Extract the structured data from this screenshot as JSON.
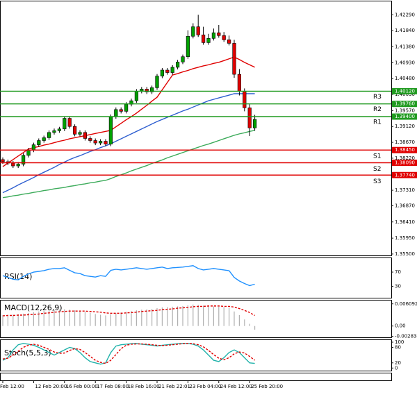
{
  "chart_data": {
    "type": "candlestick",
    "up_color": "#00a000",
    "down_color": "#e00000",
    "x": [
      "Feb 12:00",
      null,
      null,
      null,
      null,
      null,
      "12 Feb 20:00",
      null,
      null,
      null,
      null,
      null,
      "16 Feb 00:00",
      null,
      null,
      null,
      null,
      null,
      "17 Feb 08:00",
      null,
      null,
      null,
      null,
      null,
      "18 Feb 16:00",
      null,
      null,
      null,
      null,
      null,
      "21 Feb 22:01",
      null,
      null,
      null,
      null,
      null,
      "23 Feb 04:00",
      null,
      null,
      null,
      null,
      null,
      "24 Feb 12:00",
      null,
      null,
      null,
      null,
      null,
      "25 Feb 20:00",
      null
    ],
    "open": [
      1.3818,
      1.3812,
      1.3808,
      1.38,
      1.3805,
      1.383,
      1.3845,
      1.386,
      1.3872,
      1.388,
      1.3895,
      1.39,
      1.3905,
      1.3935,
      1.3912,
      1.389,
      1.3895,
      1.3878,
      1.3872,
      1.3865,
      1.387,
      1.3862,
      1.394,
      1.396,
      1.3955,
      1.3975,
      1.3985,
      1.4012,
      1.4018,
      1.401,
      1.4022,
      1.4055,
      1.4072,
      1.4065,
      1.408,
      1.4095,
      1.411,
      1.4168,
      1.4195,
      1.4172,
      1.415,
      1.4162,
      1.4178,
      1.417,
      1.4158,
      1.4148,
      1.406,
      1.4012,
      1.3965,
      1.3908
    ],
    "high": [
      1.3824,
      1.3818,
      1.3814,
      1.3811,
      1.3836,
      1.3851,
      1.3866,
      1.3878,
      1.3886,
      1.3901,
      1.3906,
      1.3911,
      1.3941,
      1.3941,
      1.3918,
      1.3901,
      1.3901,
      1.3884,
      1.3878,
      1.3876,
      1.3876,
      1.3946,
      1.3966,
      1.3966,
      1.3981,
      1.3991,
      1.4018,
      1.4024,
      1.4024,
      1.4028,
      1.4061,
      1.4078,
      1.4078,
      1.4086,
      1.4101,
      1.4116,
      1.4185,
      1.4205,
      1.4229,
      1.4195,
      1.4175,
      1.419,
      1.42,
      1.418,
      1.417,
      1.4158,
      1.4075,
      1.402,
      1.3975,
      1.3945
    ],
    "low": [
      1.3806,
      1.3802,
      1.3794,
      1.3794,
      1.3799,
      1.3824,
      1.3839,
      1.3854,
      1.3866,
      1.3874,
      1.3889,
      1.3894,
      1.3899,
      1.3906,
      1.3884,
      1.3884,
      1.3872,
      1.3866,
      1.3859,
      1.3859,
      1.3856,
      1.3856,
      1.3934,
      1.3949,
      1.3949,
      1.3969,
      1.3979,
      1.4006,
      1.4004,
      1.4004,
      1.4016,
      1.4049,
      1.4059,
      1.4059,
      1.4074,
      1.4089,
      1.4104,
      1.4162,
      1.4166,
      1.4144,
      1.4144,
      1.4156,
      1.4164,
      1.4152,
      1.4142,
      1.405,
      1.4,
      1.3955,
      1.3885,
      1.39
    ],
    "close": [
      1.3812,
      1.3808,
      1.38,
      1.3805,
      1.383,
      1.3845,
      1.386,
      1.3872,
      1.388,
      1.3895,
      1.39,
      1.3905,
      1.3935,
      1.3912,
      1.389,
      1.3895,
      1.3878,
      1.3872,
      1.3865,
      1.387,
      1.3862,
      1.394,
      1.396,
      1.3955,
      1.3975,
      1.3985,
      1.4012,
      1.4018,
      1.401,
      1.4022,
      1.4055,
      1.4072,
      1.4065,
      1.408,
      1.4095,
      1.411,
      1.4168,
      1.4195,
      1.4172,
      1.415,
      1.4162,
      1.4178,
      1.417,
      1.4158,
      1.4148,
      1.406,
      1.4012,
      1.3965,
      1.3908,
      1.3932
    ],
    "ylim": [
      1.3544,
      1.4269
    ],
    "yticks": [
      {
        "value": 1.4229,
        "label": "1.42290"
      },
      {
        "value": 1.4184,
        "label": "1.41840"
      },
      {
        "value": 1.4138,
        "label": "1.41380"
      },
      {
        "value": 1.4093,
        "label": "1.40930"
      },
      {
        "value": 1.4048,
        "label": "1.40480"
      },
      {
        "value": 1.4003,
        "label": "1.40030"
      },
      {
        "value": 1.3957,
        "label": "1.39570"
      },
      {
        "value": 1.3912,
        "label": "1.39120"
      },
      {
        "value": 1.3867,
        "label": "1.38670"
      },
      {
        "value": 1.3822,
        "label": "1.38220"
      },
      {
        "value": 1.3731,
        "label": "1.37310"
      },
      {
        "value": 1.3687,
        "label": "1.36870"
      },
      {
        "value": 1.3641,
        "label": "1.36410"
      },
      {
        "value": 1.3595,
        "label": "1.35950"
      },
      {
        "value": 1.355,
        "label": "1.35500"
      }
    ],
    "moving_averages": [
      {
        "color": "#e00000",
        "values": [
          1.3798,
          1.3808,
          1.3818,
          1.3828,
          1.3838,
          1.3848,
          1.3852,
          1.3855,
          1.3859,
          1.3862,
          1.3866,
          1.387,
          1.3873,
          1.3877,
          1.388,
          1.3883,
          1.3886,
          1.3889,
          1.3892,
          1.3895,
          1.3898,
          1.3901,
          1.3911,
          1.3921,
          1.3931,
          1.394,
          1.395,
          1.3961,
          1.3972,
          1.3984,
          1.3995,
          1.4016,
          1.4037,
          1.4058,
          1.4062,
          1.4067,
          1.4071,
          1.4076,
          1.408,
          1.4084,
          1.4087,
          1.4091,
          1.4094,
          1.4099,
          1.4104,
          1.4109,
          1.4102,
          1.4094,
          1.4087,
          1.408
        ]
      },
      {
        "color": "#2f5fd0",
        "values": [
          1.3724,
          1.3731,
          1.3738,
          1.3746,
          1.3753,
          1.376,
          1.3767,
          1.3775,
          1.3782,
          1.3789,
          1.3796,
          1.3804,
          1.3811,
          1.3818,
          1.3824,
          1.3829,
          1.3835,
          1.3841,
          1.3846,
          1.3852,
          1.3857,
          1.3863,
          1.387,
          1.3877,
          1.3884,
          1.3891,
          1.3898,
          1.3905,
          1.3912,
          1.3919,
          1.3926,
          1.3932,
          1.3938,
          1.3944,
          1.395,
          1.3956,
          1.3961,
          1.3967,
          1.3973,
          1.3979,
          1.3985,
          1.3989,
          1.3993,
          1.3997,
          1.4001,
          1.4005,
          1.4005,
          1.4005,
          1.4005,
          1.4005
        ]
      },
      {
        "color": "#3cab5a",
        "values": [
          1.371,
          1.3712,
          1.3715,
          1.3717,
          1.372,
          1.3722,
          1.3725,
          1.3727,
          1.373,
          1.3732,
          1.3735,
          1.3737,
          1.3739,
          1.3742,
          1.3744,
          1.3747,
          1.3749,
          1.3752,
          1.3754,
          1.3757,
          1.3759,
          1.3764,
          1.377,
          1.3775,
          1.378,
          1.3786,
          1.3791,
          1.3796,
          1.3801,
          1.3807,
          1.3812,
          1.3817,
          1.3823,
          1.3828,
          1.3833,
          1.3838,
          1.3843,
          1.3848,
          1.3853,
          1.3858,
          1.3862,
          1.3867,
          1.3872,
          1.3877,
          1.3882,
          1.3887,
          1.3891,
          1.3894,
          1.3898,
          1.3901
        ]
      }
    ],
    "levels": [
      {
        "name": "R3",
        "value": 1.4012,
        "label": "1.40120",
        "color": "#1f9a1f"
      },
      {
        "name": "R2",
        "value": 1.3976,
        "label": "1.39760",
        "color": "#1f9a1f"
      },
      {
        "name": "R1",
        "value": 1.394,
        "label": "1.39400",
        "color": "#1f9a1f"
      },
      {
        "name": "S1",
        "value": 1.3845,
        "label": "1.38450",
        "color": "#e00000"
      },
      {
        "name": "S2",
        "value": 1.3809,
        "label": "1.38090",
        "color": "#e00000"
      },
      {
        "name": "S3",
        "value": 1.3774,
        "label": "1.37740",
        "color": "#e00000"
      }
    ],
    "indicators": [
      {
        "type": "line",
        "title": "RSI(14)",
        "ylim": [
          -2,
          109
        ],
        "yticks": [
          70,
          30
        ],
        "series": [
          {
            "color": "#1e90ff",
            "values": [
              60,
              55,
              50,
              48,
              58,
              65,
              70,
              72,
              74,
              78,
              80,
              80,
              82,
              75,
              68,
              66,
              60,
              58,
              56,
              60,
              58,
              75,
              78,
              76,
              78,
              80,
              82,
              80,
              78,
              80,
              82,
              84,
              80,
              82,
              83,
              84,
              86,
              88,
              80,
              76,
              78,
              80,
              78,
              76,
              74,
              55,
              45,
              38,
              32,
              36
            ]
          }
        ]
      },
      {
        "type": "macd",
        "title": "MACD(12,26,9)",
        "ylim": [
          -0.0031,
          0.007
        ],
        "yticks": [
          0.006092,
          {
            "value": 0,
            "label": "0.00"
          },
          -0.002834
        ],
        "histogram": {
          "color": "#b0b0b0",
          "values": [
            0.003,
            0.0031,
            0.0031,
            0.0032,
            0.0034,
            0.0036,
            0.0038,
            0.004,
            0.0042,
            0.0043,
            0.0044,
            0.0045,
            0.0046,
            0.0045,
            0.0043,
            0.0041,
            0.0039,
            0.0036,
            0.0033,
            0.0031,
            0.0029,
            0.0032,
            0.0035,
            0.0037,
            0.0039,
            0.0041,
            0.0043,
            0.0045,
            0.0046,
            0.0047,
            0.0049,
            0.0051,
            0.0052,
            0.0053,
            0.0054,
            0.0055,
            0.0057,
            0.0059,
            0.0058,
            0.0056,
            0.0055,
            0.0054,
            0.0053,
            0.0052,
            0.005,
            0.004,
            0.003,
            0.0018,
            0.0006,
            -0.001
          ]
        },
        "signal": {
          "color": "#e00000",
          "values": [
            0.0028,
            0.0029,
            0.0029,
            0.003,
            0.003,
            0.0031,
            0.0032,
            0.0033,
            0.0035,
            0.0036,
            0.0038,
            0.0039,
            0.004,
            0.0041,
            0.0041,
            0.0041,
            0.0041,
            0.004,
            0.0039,
            0.0038,
            0.0036,
            0.0035,
            0.0035,
            0.0035,
            0.0036,
            0.0037,
            0.0038,
            0.004,
            0.0041,
            0.0042,
            0.0043,
            0.0045,
            0.0046,
            0.0047,
            0.0049,
            0.005,
            0.0051,
            0.0053,
            0.0054,
            0.0054,
            0.0055,
            0.0055,
            0.0055,
            0.0054,
            0.0054,
            0.0052,
            0.0048,
            0.0043,
            0.0037,
            0.0029
          ]
        }
      },
      {
        "type": "line",
        "title": "Stoch(5,5,3)",
        "ylim": [
          -10,
          108
        ],
        "yticks": [
          100,
          80,
          20,
          0
        ],
        "series": [
          {
            "color": "#20b2aa",
            "values": [
              30,
              40,
              70,
              90,
              95,
              92,
              88,
              80,
              70,
              60,
              50,
              60,
              70,
              80,
              75,
              60,
              40,
              25,
              20,
              15,
              20,
              60,
              85,
              90,
              92,
              94,
              95,
              92,
              90,
              88,
              85,
              88,
              90,
              92,
              94,
              95,
              95,
              92,
              85,
              70,
              50,
              30,
              25,
              40,
              60,
              70,
              60,
              40,
              20,
              18
            ]
          },
          {
            "color": "#e00000",
            "dashed": true,
            "values": [
              35,
              38,
              50,
              65,
              80,
              88,
              92,
              88,
              80,
              72,
              62,
              57,
              58,
              68,
              75,
              72,
              60,
              45,
              30,
              22,
              18,
              30,
              52,
              75,
              88,
              92,
              93,
              93,
              92,
              90,
              88,
              87,
              88,
              90,
              92,
              94,
              95,
              94,
              90,
              82,
              68,
              52,
              38,
              32,
              40,
              55,
              62,
              58,
              45,
              30
            ]
          }
        ]
      }
    ]
  }
}
